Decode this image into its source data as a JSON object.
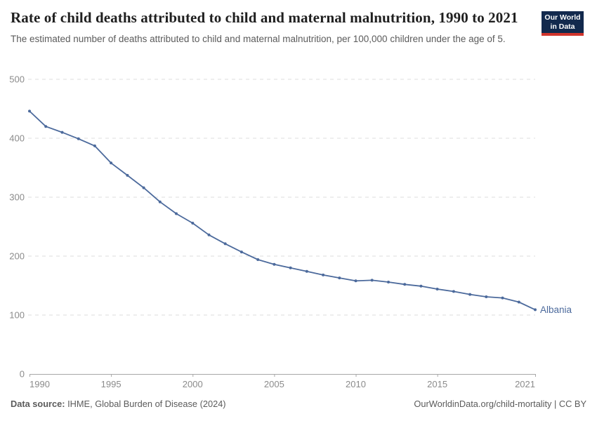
{
  "header": {
    "title": "Rate of child deaths attributed to child and maternal malnutrition, 1990 to 2021",
    "subtitle": "The estimated number of deaths attributed to child and maternal malnutrition, per 100,000 children under the age of 5."
  },
  "logo": {
    "line1": "Our World",
    "line2": "in Data",
    "bg_color": "#12294d",
    "accent_color": "#d0342c"
  },
  "chart_data": {
    "type": "line",
    "title": "Rate of child deaths attributed to child and maternal malnutrition, 1990 to 2021",
    "subtitle": "The estimated number of deaths attributed to child and maternal malnutrition, per 100,000 children under the age of 5.",
    "x": [
      1990,
      1991,
      1992,
      1993,
      1994,
      1995,
      1996,
      1997,
      1998,
      1999,
      2000,
      2001,
      2002,
      2003,
      2004,
      2005,
      2006,
      2007,
      2008,
      2009,
      2010,
      2011,
      2012,
      2013,
      2014,
      2015,
      2016,
      2017,
      2018,
      2019,
      2020,
      2021
    ],
    "series": [
      {
        "name": "Albania",
        "color": "#4C6A9C",
        "values": [
          446,
          420,
          410,
          399,
          387,
          358,
          337,
          316,
          292,
          272,
          256,
          236,
          221,
          207,
          194,
          186,
          180,
          174,
          168,
          163,
          158,
          159,
          156,
          152,
          149,
          144,
          140,
          135,
          131,
          129,
          122,
          109
        ]
      }
    ],
    "xlim": [
      1990,
      2021
    ],
    "ylim": [
      0,
      500
    ],
    "xticks": [
      1990,
      1995,
      2000,
      2005,
      2010,
      2015,
      2021
    ],
    "yticks": [
      0,
      100,
      200,
      300,
      400,
      500
    ],
    "grid": "horizontal-dashed",
    "legend_position": "end-of-line-label",
    "entity_label": "Albania",
    "xlabel": "",
    "ylabel": ""
  },
  "footer": {
    "source_label": "Data source:",
    "source_text": "IHME, Global Burden of Disease (2024)",
    "credit": "OurWorldinData.org/child-mortality | CC BY"
  },
  "colors": {
    "line": "#4C6A9C",
    "axis_text": "#8b8b8b",
    "grid": "#dcdcdc",
    "axis_line": "#a7a7a7",
    "title_text": "#1f1f1f",
    "subtitle_text": "#5b5b5b",
    "footer_text": "#5b5b5b"
  }
}
